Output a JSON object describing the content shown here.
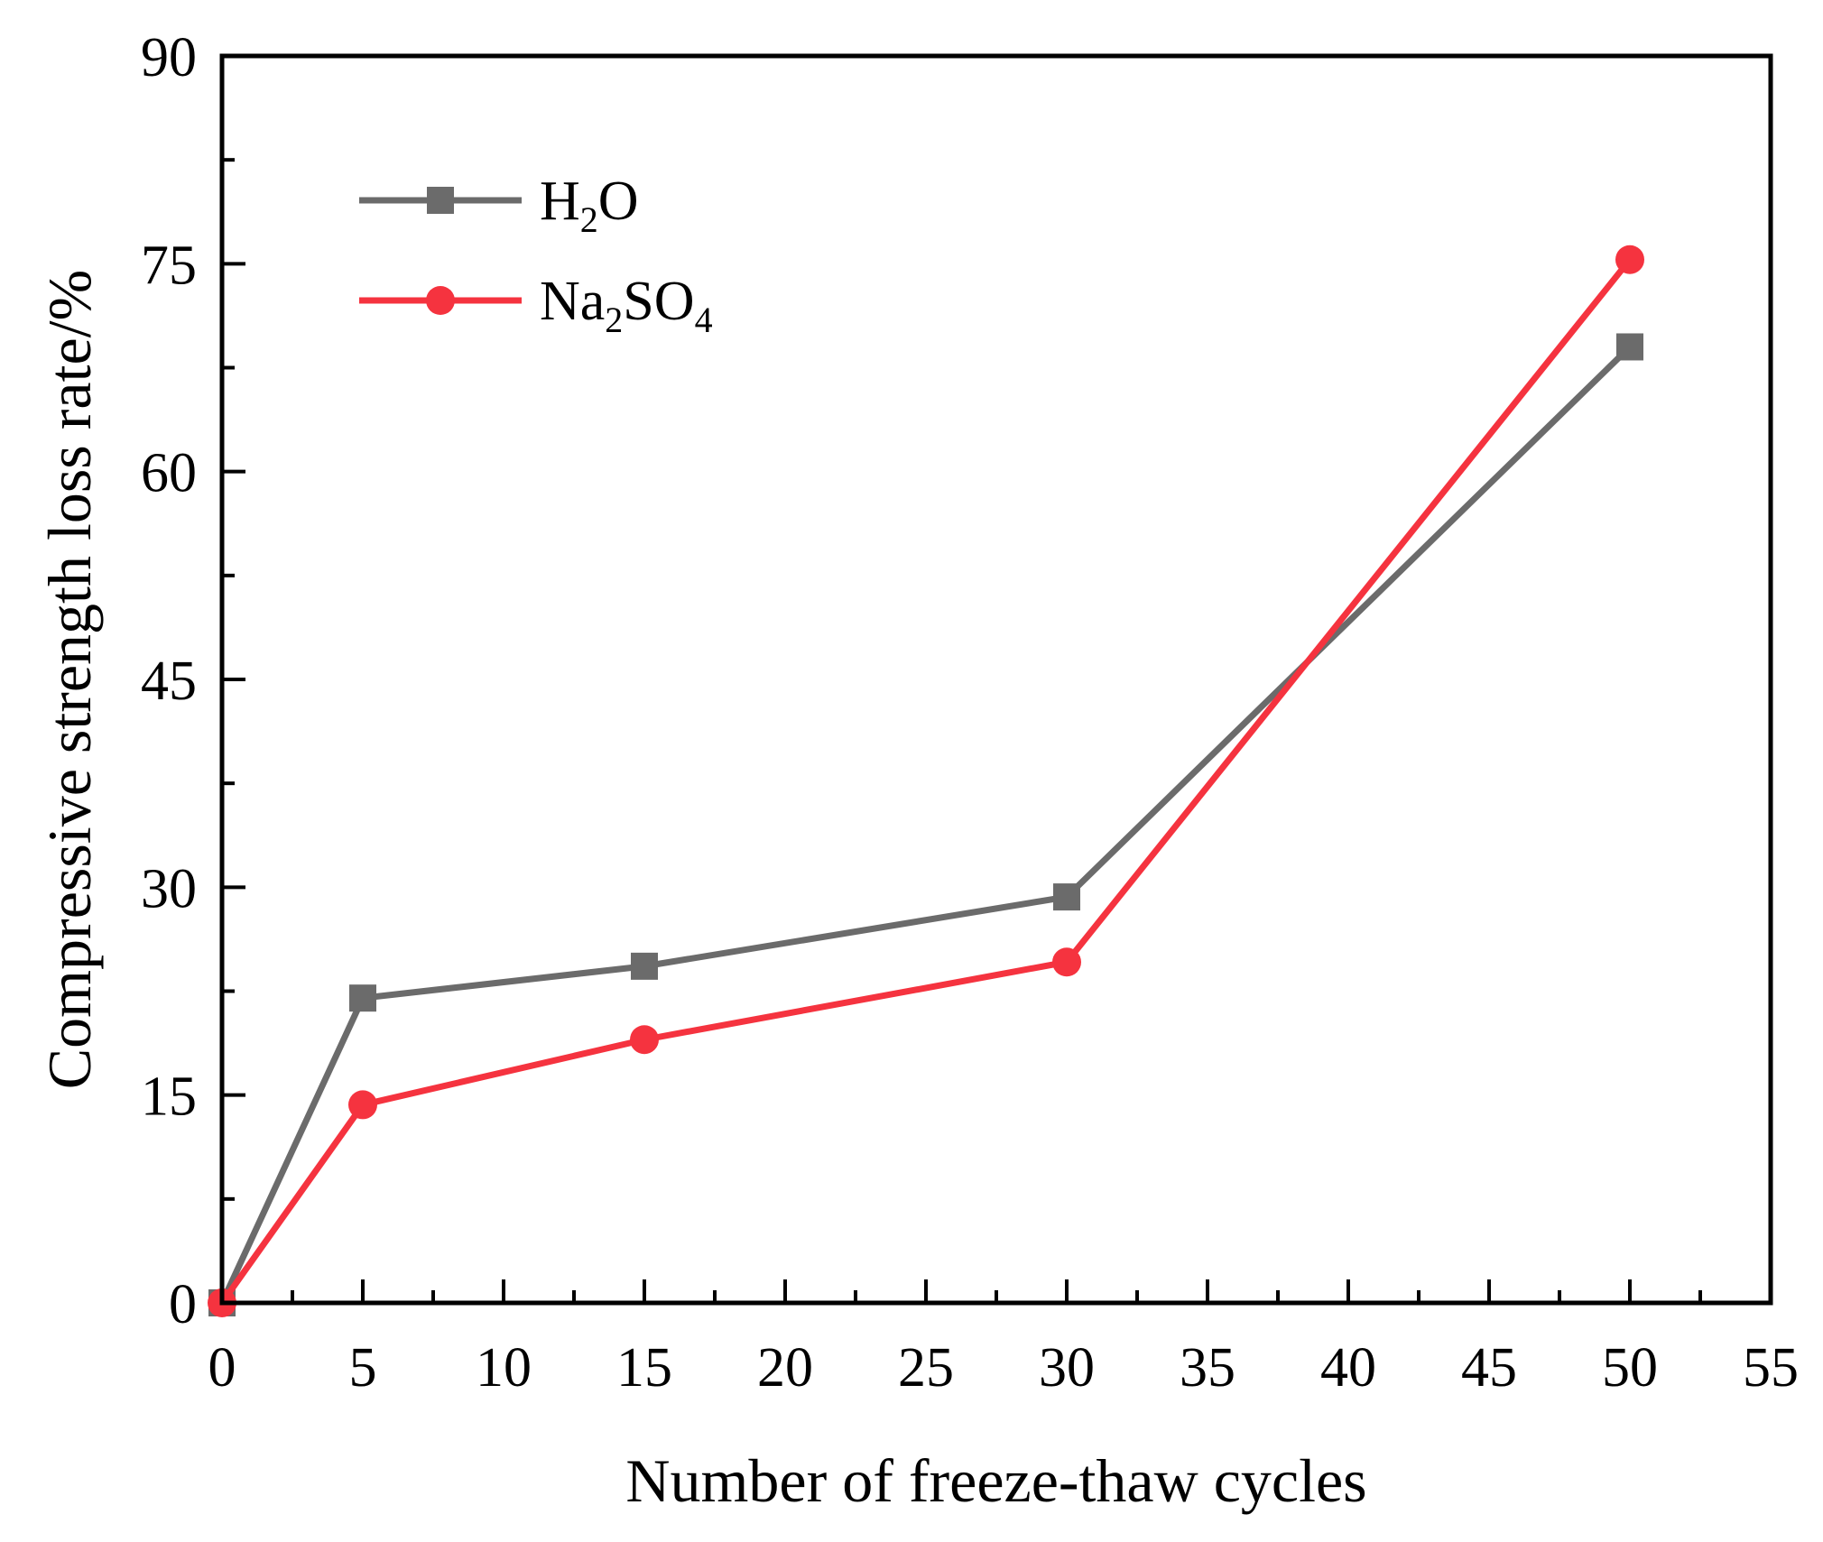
{
  "chart_data": {
    "type": "line",
    "title": "",
    "xlabel": "Number of freeze-thaw cycles",
    "ylabel": "Compressive strength loss rate/%",
    "xlim": [
      0,
      55
    ],
    "ylim": [
      0,
      90
    ],
    "xticks": [
      0,
      5,
      10,
      15,
      20,
      25,
      30,
      35,
      40,
      45,
      50,
      55
    ],
    "yticks": [
      0,
      15,
      30,
      45,
      60,
      75,
      90
    ],
    "grid": false,
    "legend_position": "top-left",
    "series": [
      {
        "name": "H2O",
        "legend_base": "H",
        "legend_sub": "2",
        "legend_tail": "O",
        "color": "#6b6b6b",
        "marker": "square",
        "x": [
          0,
          5,
          15,
          30,
          50
        ],
        "y": [
          0,
          22.0,
          24.3,
          29.3,
          69.0
        ]
      },
      {
        "name": "Na2SO4",
        "legend_base": "Na",
        "legend_sub": "2",
        "legend_mid": "SO",
        "legend_sub2": "4",
        "color": "#f5333f",
        "marker": "circle",
        "x": [
          0,
          5,
          15,
          30,
          50
        ],
        "y": [
          0,
          14.3,
          19.0,
          24.6,
          75.3
        ]
      }
    ]
  }
}
